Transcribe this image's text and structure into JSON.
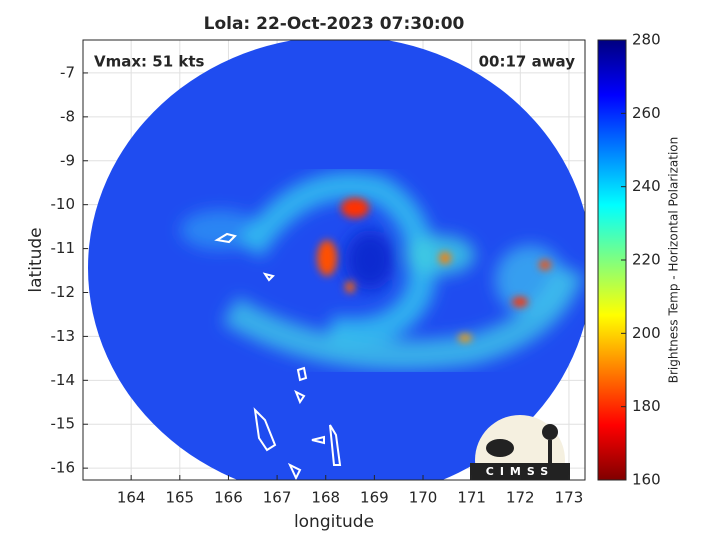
{
  "chart_data": {
    "type": "image",
    "title": "Lola: 22-Oct-2023 07:30:00",
    "annotations": [
      "Vmax: 51 kts",
      "00:17 away"
    ],
    "xlabel": "longitude",
    "ylabel": "latitude",
    "xlim": [
      163.01,
      173.33
    ],
    "ylim": [
      -16.27,
      -6.25
    ],
    "xticks": [
      164,
      165,
      166,
      167,
      168,
      169,
      170,
      171,
      172,
      173
    ],
    "yticks": [
      -16,
      -15,
      -14,
      -13,
      -12,
      -11,
      -10,
      -9,
      -8,
      -7
    ],
    "grid": true,
    "colorbar": {
      "label": "Brightness Temp - Horizontal Polarization",
      "clim": [
        160,
        280
      ],
      "ticks": [
        160,
        180,
        200,
        220,
        240,
        260,
        280
      ],
      "colormap": "jet"
    },
    "logo_text": "CIMSS"
  }
}
